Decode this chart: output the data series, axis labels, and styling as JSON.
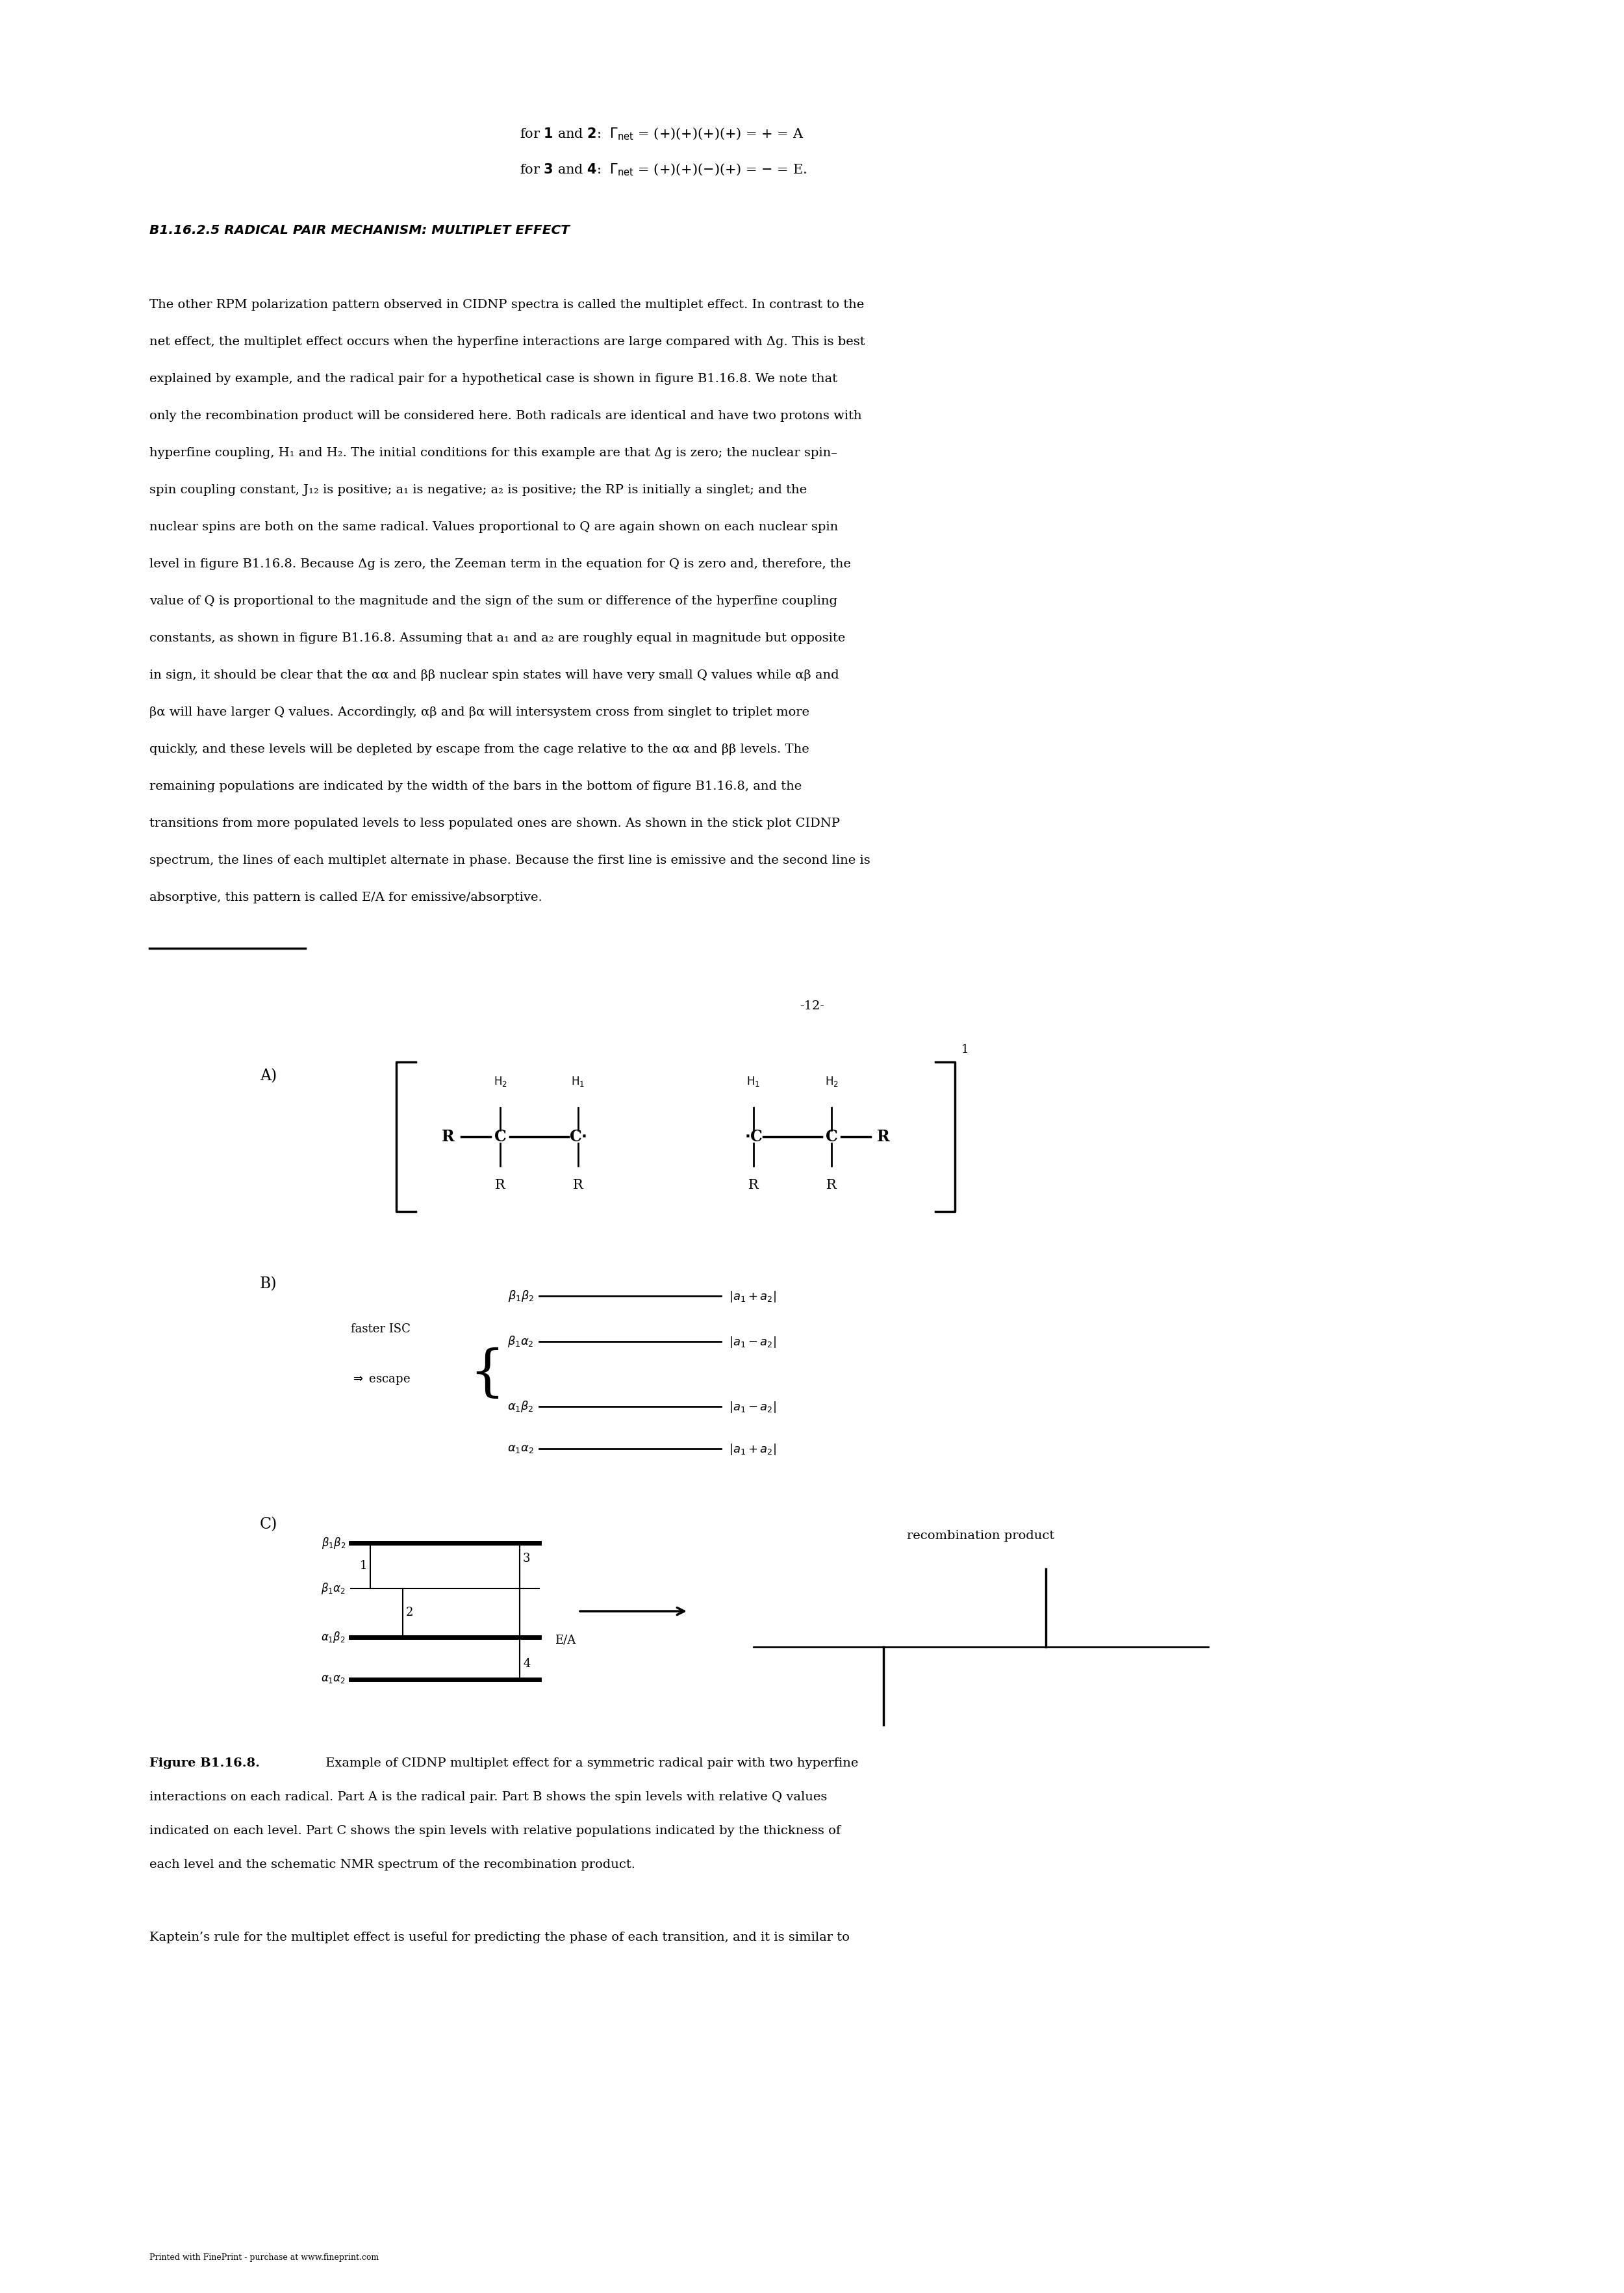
{
  "bg_color": "#ffffff",
  "page_width": 24.8,
  "page_height": 35.08,
  "top_text1": "for 1 and 2:  \\u0393_{net} = (+)(+)(+)(+) = + = A",
  "top_text2": "for 3 and 4:  \\u0393_{net} = (+)(+)(\\u2212)(+) = \\u2212 = E.",
  "section_title": "B1.16.2.5 RADICAL PAIR MECHANISM: MULTIPLET EFFECT",
  "body_text": [
    "The other RPM polarization pattern observed in CIDNP spectra is called the multiplet effect. In contrast to the",
    "net effect, the multiplet effect occurs when the hyperfine interactions are large compared with Δg. This is best",
    "explained by example, and the radical pair for a hypothetical case is shown in figure B1.16.8. We note that",
    "only the recombination product will be considered here. Both radicals are identical and have two protons with",
    "hyperfine coupling, H₁ and H₂. The initial conditions for this example are that Δg is zero; the nuclear spin–",
    "spin coupling constant, J₁₂ is positive; a₁ is negative; a₂ is positive; the RP is initially a singlet; and the",
    "nuclear spins are both on the same radical. Values proportional to Q are again shown on each nuclear spin",
    "level in figure B1.16.8. Because Δg is zero, the Zeeman term in the equation for Q is zero and, therefore, the",
    "value of Q is proportional to the magnitude and the sign of the sum or difference of the hyperfine coupling",
    "constants, as shown in figure B1.16.8. Assuming that a₁ and a₂ are roughly equal in magnitude but opposite",
    "in sign, it should be clear that the αα and ββ nuclear spin states will have very small Q values while αβ and",
    "βα will have larger Q values. Accordingly, αβ and βα will intersystem cross from singlet to triplet more",
    "quickly, and these levels will be depleted by escape from the cage relative to the αα and ββ levels. The",
    "remaining populations are indicated by the width of the bars in the bottom of figure B1.16.8, and the",
    "transitions from more populated levels to less populated ones are shown. As shown in the stick plot CIDNP",
    "spectrum, the lines of each multiplet alternate in phase. Because the first line is emissive and the second line is",
    "absorptive, this pattern is called E/A for emissive/absorptive."
  ],
  "page_number": "-12-",
  "caption_bold": "Figure B1.16.8.",
  "caption_text": [
    "Figure B1.16.8. Example of CIDNP multiplet effect for a symmetric radical pair with two hyperfine",
    "interactions on each radical. Part A is the radical pair. Part B shows the spin levels with relative Q values",
    "indicated on each level. Part C shows the spin levels with relative populations indicated by the thickness of",
    "each level and the schematic NMR spectrum of the recombination product."
  ],
  "footer_text": "Kaptein’s rule for the multiplet effect is useful for predicting the phase of each transition, and it is similar to",
  "footer_small": "Printed with FinePrint - purchase at www.fineprint.com"
}
